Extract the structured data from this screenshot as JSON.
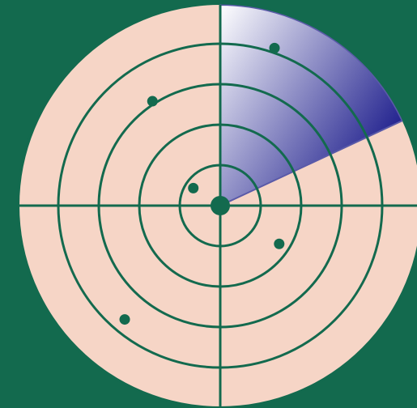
{
  "colors": {
    "background": "#136a4e",
    "radar_face": "#f6d5c6",
    "grid_lines": "#136a4e",
    "sweep_light": "#ffffff",
    "sweep_dark": "#23238f",
    "sweep_outline": "#5a5aa8",
    "blips": "#136a4e"
  },
  "radar": {
    "ring_count": 5,
    "sweep_start_bearing_deg": 0,
    "sweep_end_bearing_deg": 65,
    "blips": [
      {
        "bearing_deg": 19,
        "range_fraction": 0.83
      },
      {
        "bearing_deg": 327,
        "range_fraction": 0.62
      },
      {
        "bearing_deg": 303,
        "range_fraction": 0.16
      },
      {
        "bearing_deg": 123,
        "range_fraction": 0.35
      },
      {
        "bearing_deg": 220,
        "range_fraction": 0.74
      }
    ]
  }
}
